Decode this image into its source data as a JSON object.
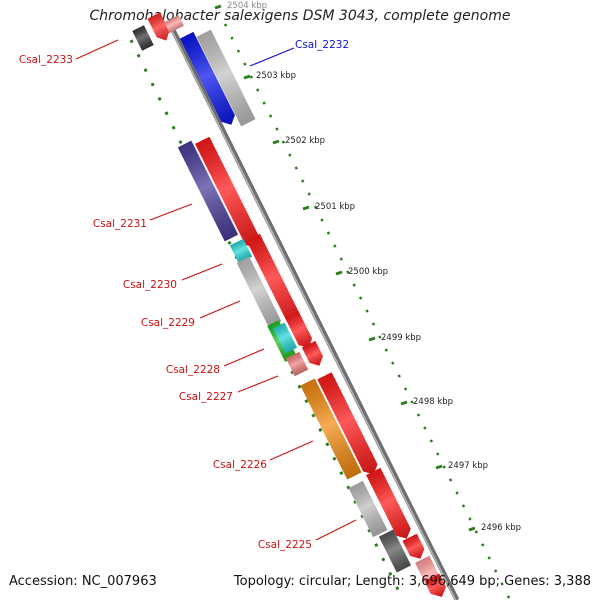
{
  "title": "Chromohalobacter salexigens DSM 3043, complete genome",
  "footer": {
    "accession": "Accession: NC_007963",
    "summary": "Topology: circular; Length: 3,696,649 bp; Genes: 3,388"
  },
  "colors": {
    "backbone": "#8a8a8a",
    "ruler": "#2e7d1f",
    "label_default": "#cc1111",
    "label_selected": "#1111cc"
  },
  "ruler_ticks": [
    {
      "label": "2504 kbp"
    },
    {
      "label": "2503 kbp"
    },
    {
      "label": "2502 kbp"
    },
    {
      "label": "2501 kbp"
    },
    {
      "label": "2500 kbp"
    },
    {
      "label": "2499 kbp"
    },
    {
      "label": "2498 kbp"
    },
    {
      "label": "2497 kbp"
    },
    {
      "label": "2496 kbp"
    }
  ],
  "gene_labels": [
    {
      "id": "Csal_2233",
      "label": "Csal_2233",
      "selected": false
    },
    {
      "id": "Csal_2232",
      "label": "Csal_2232",
      "selected": true
    },
    {
      "id": "Csal_2231",
      "label": "Csal_2231",
      "selected": false
    },
    {
      "id": "Csal_2230",
      "label": "Csal_2230",
      "selected": false
    },
    {
      "id": "Csal_2229",
      "label": "Csal_2229",
      "selected": false
    },
    {
      "id": "Csal_2228",
      "label": "Csal_2228",
      "selected": false
    },
    {
      "id": "Csal_2227",
      "label": "Csal_2227",
      "selected": false
    },
    {
      "id": "Csal_2226",
      "label": "Csal_2226",
      "selected": false
    },
    {
      "id": "Csal_2225",
      "label": "Csal_2225",
      "selected": false
    }
  ]
}
